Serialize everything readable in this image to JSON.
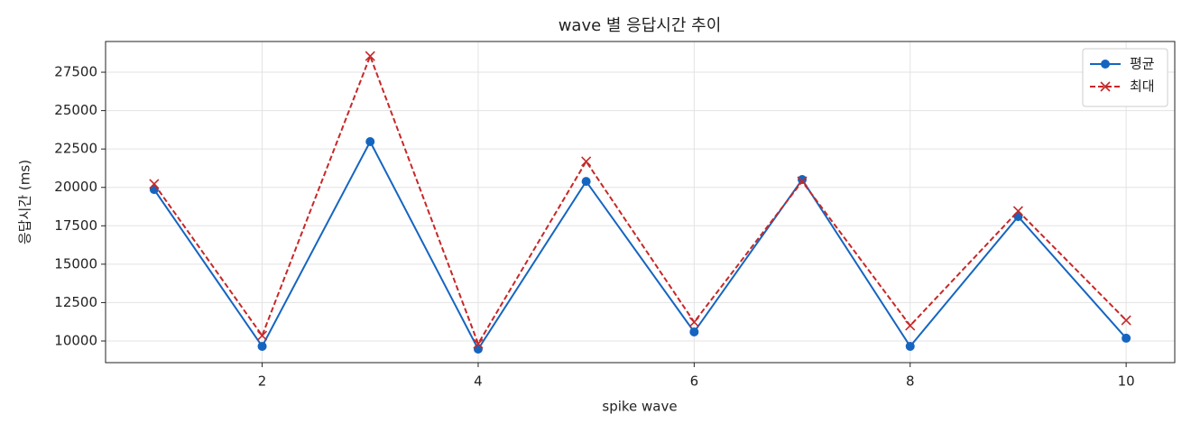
{
  "chart_data": {
    "type": "line",
    "title": "wave 별 응답시간 추이",
    "x_label": "spike wave",
    "y_label": "응답시간 (ms)",
    "x": [
      1,
      2,
      3,
      4,
      5,
      6,
      7,
      8,
      9,
      10
    ],
    "series": [
      {
        "name": "평균",
        "color": "#1565c0",
        "marker": "circle",
        "linestyle": "solid",
        "values": [
          19860,
          9650,
          22980,
          9470,
          20390,
          10590,
          20510,
          9650,
          18100,
          10180
        ]
      },
      {
        "name": "최대",
        "color": "#c62828",
        "marker": "x",
        "linestyle": "dashed",
        "values": [
          20220,
          10350,
          28550,
          9820,
          21690,
          11230,
          20390,
          11000,
          18460,
          11350
        ]
      }
    ],
    "xlim": [
      0.55,
      10.45
    ],
    "xticks": [
      2,
      4,
      6,
      8,
      10
    ],
    "ylim": [
      8590,
      29500
    ],
    "yticks": [
      10000,
      12500,
      15000,
      17500,
      20000,
      22500,
      25000,
      27500
    ],
    "grid": true,
    "legend": "upper right"
  }
}
